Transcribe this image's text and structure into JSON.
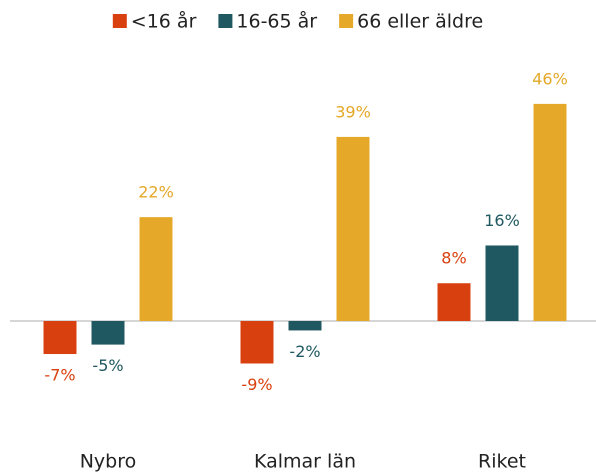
{
  "chart_data": {
    "type": "bar",
    "categories": [
      "Nybro",
      "Kalmar län",
      "Riket"
    ],
    "series": [
      {
        "name": "<16 år",
        "color": "#d9400f",
        "values": [
          -7,
          -9,
          8
        ],
        "value_labels": [
          "-7%",
          "-9%",
          "8%"
        ]
      },
      {
        "name": "16-65 år",
        "color": "#1f5860",
        "values": [
          -5,
          -2,
          16
        ],
        "value_labels": [
          "-5%",
          "-2%",
          "16%"
        ]
      },
      {
        "name": "66 eller äldre",
        "color": "#e5a828",
        "values": [
          22,
          39,
          46
        ],
        "value_labels": [
          "22%",
          "39%",
          "46%"
        ]
      }
    ],
    "legend": "top"
  }
}
